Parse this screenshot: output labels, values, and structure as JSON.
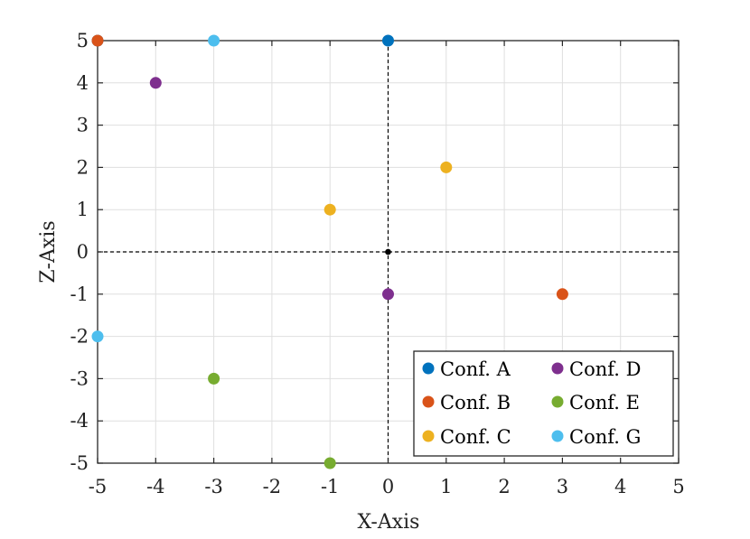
{
  "chart_data": {
    "type": "scatter",
    "title": "",
    "xlabel": "X-Axis",
    "ylabel": "Z-Axis",
    "xlim": [
      -5,
      5
    ],
    "ylim": [
      -5,
      5
    ],
    "xticks": [
      -5,
      -4,
      -3,
      -2,
      -1,
      0,
      1,
      2,
      3,
      4,
      5
    ],
    "yticks": [
      -5,
      -4,
      -3,
      -2,
      -1,
      0,
      1,
      2,
      3,
      4,
      5
    ],
    "grid": true,
    "reference_lines": {
      "x": 0,
      "y": 0,
      "style": "dashed"
    },
    "origin_marker": [
      0,
      0
    ],
    "legend_position": "bottom-right",
    "series": [
      {
        "name": "Conf.  A",
        "color": "#0072BD",
        "points": [
          [
            -5,
            5
          ],
          [
            0,
            5
          ]
        ]
      },
      {
        "name": "Conf.  B",
        "color": "#D95319",
        "points": [
          [
            -5,
            5
          ],
          [
            3,
            -1
          ]
        ]
      },
      {
        "name": "Conf.  C",
        "color": "#EDB120",
        "points": [
          [
            -1,
            1
          ],
          [
            1,
            2
          ]
        ]
      },
      {
        "name": "Conf.  D",
        "color": "#7E2F8E",
        "points": [
          [
            -4,
            4
          ],
          [
            0,
            -1
          ]
        ]
      },
      {
        "name": "Conf.  E",
        "color": "#77AC30",
        "points": [
          [
            -3,
            -3
          ],
          [
            -1,
            -5
          ]
        ]
      },
      {
        "name": "Conf.  G",
        "color": "#4DBEEE",
        "points": [
          [
            -3,
            5
          ],
          [
            -5,
            -2
          ]
        ]
      }
    ]
  }
}
